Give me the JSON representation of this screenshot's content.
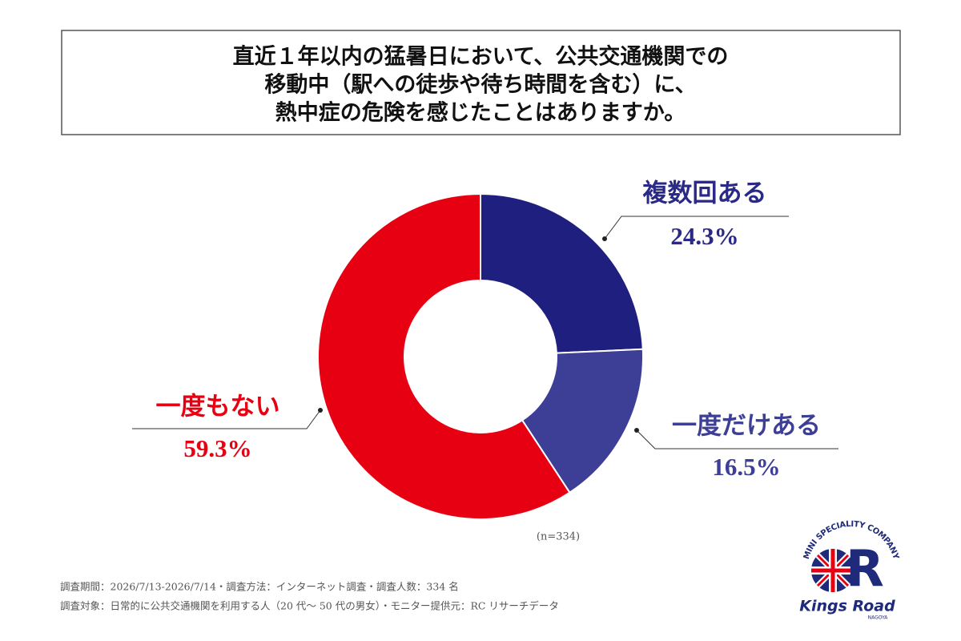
{
  "chart_data": {
    "type": "donut",
    "title": [
      "直近１年以内の猛暑日において、公共交通機関での",
      "移動中（駅への徒歩や待ち時間を含む）に、",
      "熱中症の危険を感じたことはありますか。"
    ],
    "categories": [
      "複数回ある",
      "一度だけある",
      "一度もない"
    ],
    "values": [
      24.3,
      16.5,
      59.3
    ],
    "value_labels": [
      "24.3%",
      "16.5%",
      "59.3%"
    ],
    "colors": [
      "#1f1f80",
      "#3c3f95",
      "#e60012"
    ],
    "label_colors": [
      "#2a2a86",
      "#3c3f95",
      "#e60012"
    ],
    "annotation": "(n=334)",
    "footnotes": [
      "調査期間：2026/7/13-2026/7/14・調査方法：インターネット調査・調査人数：334 名",
      "調査対象：日常的に公共交通機関を利用する人（20 代～ 50 代の男女）・モニター提供元：RC リサーチデータ"
    ]
  },
  "logo": {
    "arc_text": "MINI SPECIALITY COMPANY",
    "name": "Kings Road",
    "place": "NAGOYA"
  }
}
